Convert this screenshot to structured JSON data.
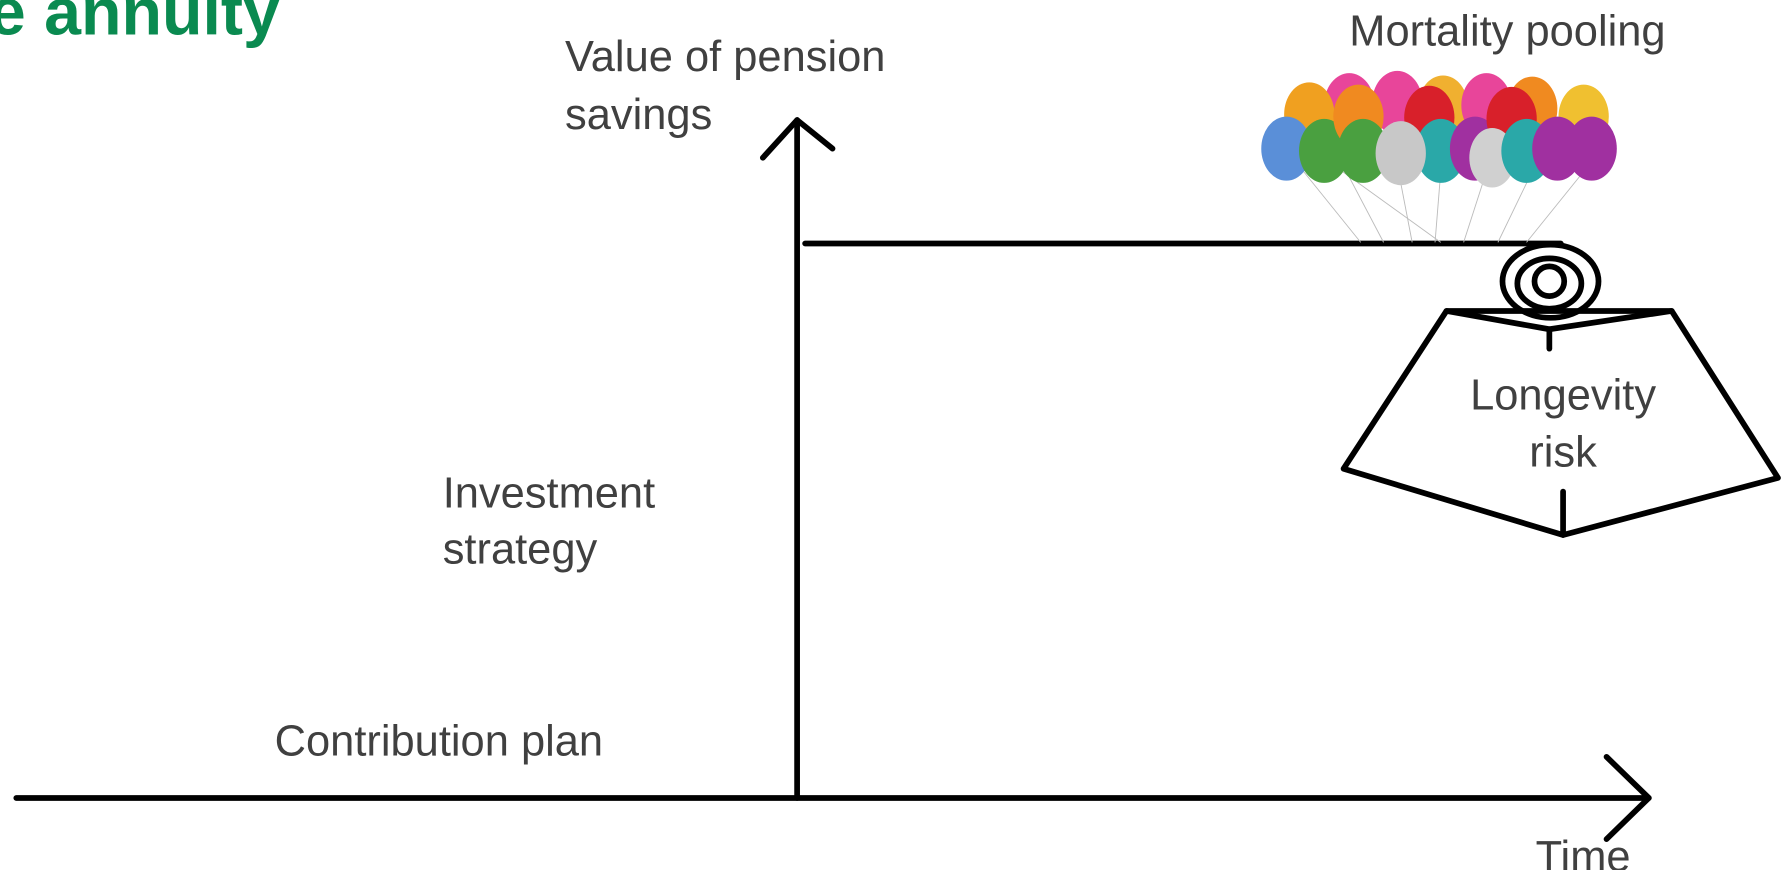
{
  "title": "e annuity",
  "y_axis_label": [
    "Value of pension",
    "savings"
  ],
  "x_axis_label": "Time",
  "mortality_label": "Mortality pooling",
  "longevity_label": [
    "Longevity",
    "risk"
  ],
  "investment_label": [
    "Investment",
    "strategy"
  ],
  "contribution_label": "Contribution plan"
}
